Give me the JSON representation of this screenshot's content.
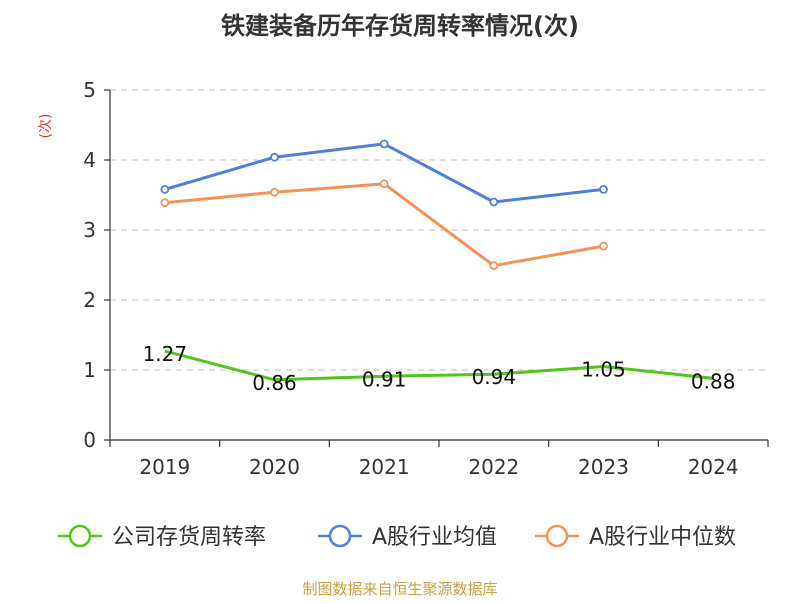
{
  "chart_data": {
    "type": "line",
    "title": "铁建装备历年存货周转率情况(次)",
    "ylabel": "(次)",
    "xlabel": "",
    "categories": [
      "2019",
      "2020",
      "2021",
      "2022",
      "2023",
      "2024"
    ],
    "ylim": [
      0,
      5
    ],
    "yticks": [
      0,
      1,
      2,
      3,
      4,
      5
    ],
    "grid": true,
    "legend_position": "bottom",
    "series": [
      {
        "name": "公司存货周转率",
        "color": "#52c41a",
        "values": [
          1.27,
          0.86,
          0.91,
          0.94,
          1.05,
          0.88
        ],
        "data_labels": [
          "1.27",
          "0.86",
          "0.91",
          "0.94",
          "1.05",
          "0.88"
        ]
      },
      {
        "name": "A股行业均值",
        "color": "#4e7fdb",
        "values": [
          3.58,
          4.04,
          4.23,
          3.4,
          3.58,
          null
        ]
      },
      {
        "name": "A股行业中位数",
        "color": "#f79257",
        "values": [
          3.39,
          3.54,
          3.66,
          2.49,
          2.77,
          null
        ]
      }
    ],
    "source": "制图数据来自恒生聚源数据库"
  }
}
